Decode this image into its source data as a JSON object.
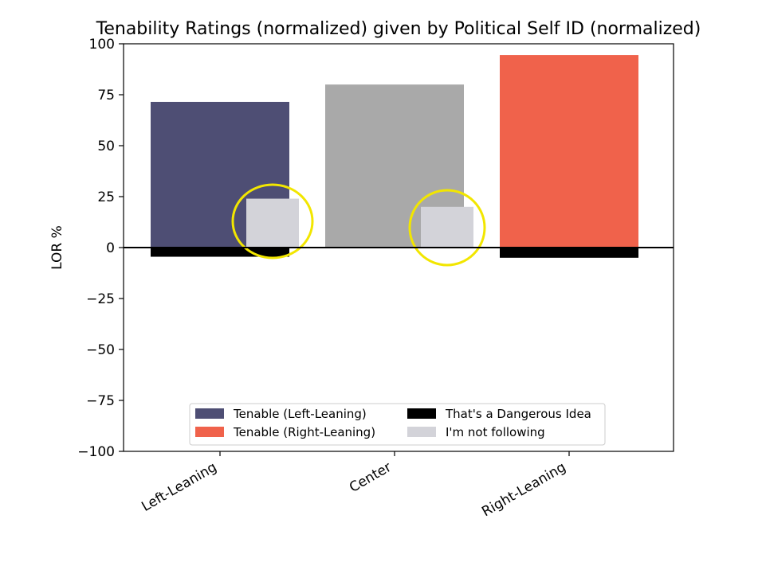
{
  "chart_data": {
    "type": "bar",
    "title": "Tenability Ratings (normalized) given by Political Self ID (normalized)",
    "xlabel": "",
    "ylabel": "LOR %",
    "ylim": [
      -100,
      100
    ],
    "yticks": [
      100,
      75,
      50,
      25,
      0,
      -25,
      -50,
      -75,
      -100
    ],
    "ytick_labels": [
      "100",
      "75",
      "50",
      "25",
      "0",
      "−25",
      "−50",
      "−75",
      "−100"
    ],
    "categories": [
      "Left-Leaning",
      "Center",
      "Right-Leaning"
    ],
    "main_bars": [
      {
        "category": "Left-Leaning",
        "value": 71.5,
        "color": "#4e4e74"
      },
      {
        "category": "Center",
        "value": 80,
        "color": "#a9a9a9"
      },
      {
        "category": "Right-Leaning",
        "value": 94.5,
        "color": "#f0624b"
      }
    ],
    "series": [
      {
        "name": "That's a Dangerous Idea",
        "color": "#000000",
        "values": [
          -4.5,
          0,
          -5
        ]
      },
      {
        "name": "I'm not following",
        "color": "#d3d3d9",
        "values": [
          24,
          20,
          0
        ]
      }
    ],
    "highlight_circles": {
      "color": "#f2e600",
      "categories": [
        "Left-Leaning",
        "Center"
      ]
    },
    "legend": {
      "placement": "lower-center",
      "entries": [
        {
          "label": "Tenable (Left-Leaning)",
          "color": "#4e4e74"
        },
        {
          "label": "That's a Dangerous Idea",
          "color": "#000000"
        },
        {
          "label": "Tenable (Right-Leaning)",
          "color": "#f0624b"
        },
        {
          "label": "I'm not following",
          "color": "#d3d3d9"
        }
      ]
    },
    "grid": false
  }
}
